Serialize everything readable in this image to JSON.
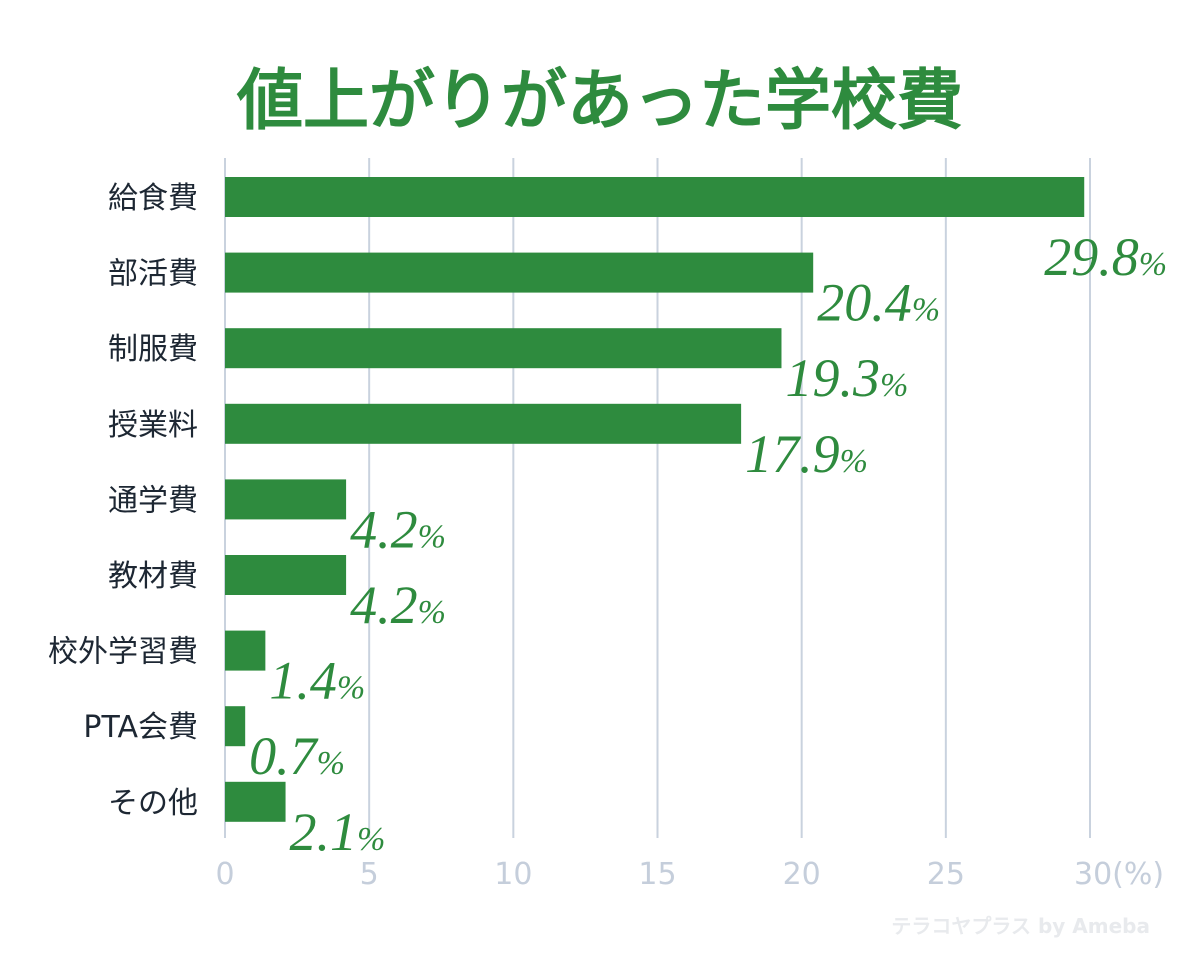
{
  "title": "値上がりがあった学校費",
  "colors": {
    "bar": "#2e8b3e",
    "title": "#2e8b3e",
    "grid": "#c9d2de",
    "tick": "#c5cedb",
    "category": "#1d2733"
  },
  "watermark": "テラコヤプラス by Ameba",
  "chart_data": {
    "type": "bar",
    "orientation": "horizontal",
    "title": "値上がりがあった学校費",
    "categories": [
      "給食費",
      "部活費",
      "制服費",
      "授業料",
      "通学費",
      "教材費",
      "校外学習費",
      "PTA会費",
      "その他"
    ],
    "values": [
      29.8,
      20.4,
      19.3,
      17.9,
      4.2,
      4.2,
      1.4,
      0.7,
      2.1
    ],
    "data_labels": [
      "29.8",
      "20.4",
      "19.3",
      "17.9",
      "4.2",
      "4.2",
      "1.4",
      "0.7",
      "2.1"
    ],
    "value_unit": "%",
    "xlim": [
      0,
      30
    ],
    "x_ticks": [
      0,
      5,
      10,
      15,
      20,
      25,
      30
    ],
    "x_tick_labels": [
      "0",
      "5",
      "10",
      "15",
      "20",
      "25",
      "30"
    ],
    "x_unit_label": "(%)",
    "grid": true,
    "legend": "none"
  }
}
